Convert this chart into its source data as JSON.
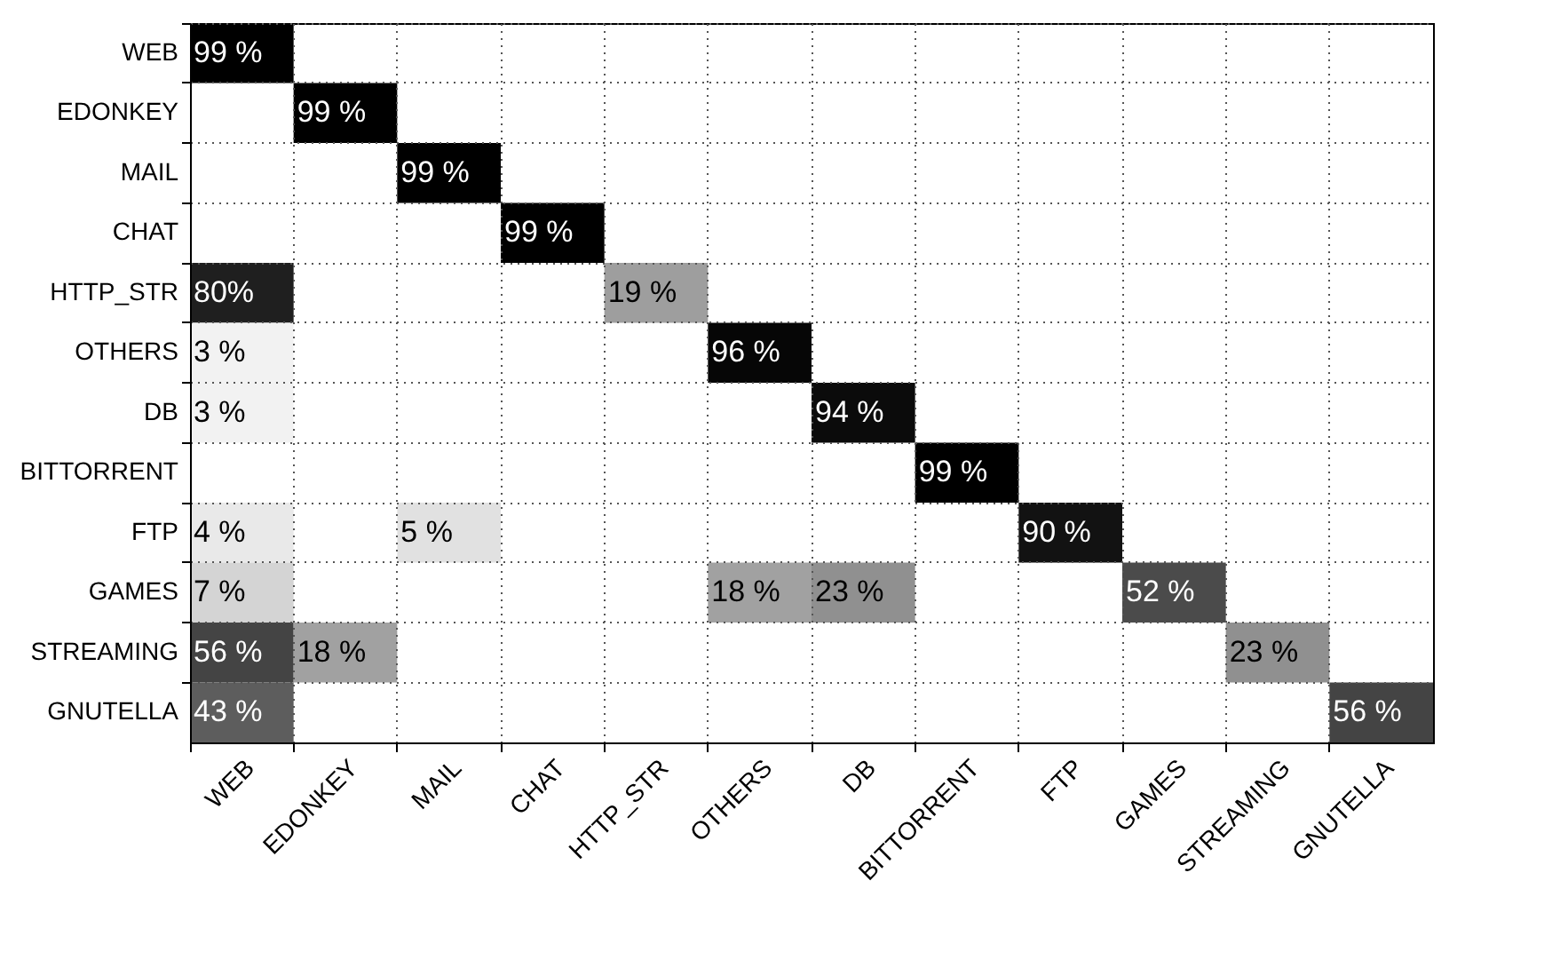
{
  "chart_data": {
    "type": "heatmap",
    "categories": [
      "WEB",
      "EDONKEY",
      "MAIL",
      "CHAT",
      "HTTP_STR",
      "OTHERS",
      "DB",
      "BITTORRENT",
      "FTP",
      "GAMES",
      "STREAMING",
      "GNUTELLA"
    ],
    "y_categories": [
      "WEB",
      "EDONKEY",
      "MAIL",
      "CHAT",
      "HTTP_STR",
      "OTHERS",
      "DB",
      "BITTORRENT",
      "FTP",
      "GAMES",
      "STREAMING",
      "GNUTELLA"
    ],
    "cells": [
      [
        99,
        null,
        null,
        null,
        null,
        null,
        null,
        null,
        null,
        null,
        null,
        null
      ],
      [
        null,
        99,
        null,
        null,
        null,
        null,
        null,
        null,
        null,
        null,
        null,
        null
      ],
      [
        null,
        null,
        99,
        null,
        null,
        null,
        null,
        null,
        null,
        null,
        null,
        null
      ],
      [
        null,
        null,
        null,
        99,
        null,
        null,
        null,
        null,
        null,
        null,
        null,
        null
      ],
      [
        80,
        null,
        null,
        null,
        19,
        null,
        null,
        null,
        null,
        null,
        null,
        null
      ],
      [
        3,
        null,
        null,
        null,
        null,
        96,
        null,
        null,
        null,
        null,
        null,
        null
      ],
      [
        3,
        null,
        null,
        null,
        null,
        null,
        94,
        null,
        null,
        null,
        null,
        null
      ],
      [
        null,
        null,
        null,
        null,
        null,
        null,
        null,
        99,
        null,
        null,
        null,
        null
      ],
      [
        4,
        null,
        5,
        null,
        null,
        null,
        null,
        null,
        90,
        null,
        null,
        null
      ],
      [
        7,
        null,
        null,
        null,
        null,
        18,
        23,
        null,
        null,
        52,
        null,
        null
      ],
      [
        56,
        18,
        null,
        null,
        null,
        null,
        null,
        null,
        null,
        null,
        23,
        null
      ],
      [
        43,
        null,
        null,
        null,
        null,
        null,
        null,
        null,
        null,
        null,
        null,
        56
      ]
    ],
    "cell_labels": [
      [
        "99 %",
        null,
        null,
        null,
        null,
        null,
        null,
        null,
        null,
        null,
        null,
        null
      ],
      [
        null,
        "99 %",
        null,
        null,
        null,
        null,
        null,
        null,
        null,
        null,
        null,
        null
      ],
      [
        null,
        null,
        "99 %",
        null,
        null,
        null,
        null,
        null,
        null,
        null,
        null,
        null
      ],
      [
        null,
        null,
        null,
        "99 %",
        null,
        null,
        null,
        null,
        null,
        null,
        null,
        null
      ],
      [
        "80%",
        null,
        null,
        null,
        "19 %",
        null,
        null,
        null,
        null,
        null,
        null,
        null
      ],
      [
        "3 %",
        null,
        null,
        null,
        null,
        "96 %",
        null,
        null,
        null,
        null,
        null,
        null
      ],
      [
        "3 %",
        null,
        null,
        null,
        null,
        null,
        "94 %",
        null,
        null,
        null,
        null,
        null
      ],
      [
        null,
        null,
        null,
        null,
        null,
        null,
        null,
        "99 %",
        null,
        null,
        null,
        null
      ],
      [
        "4 %",
        null,
        "5 %",
        null,
        null,
        null,
        null,
        null,
        "90 %",
        null,
        null,
        null
      ],
      [
        "7 %",
        null,
        null,
        null,
        null,
        "18 %",
        "23 %",
        null,
        null,
        "52 %",
        null,
        null
      ],
      [
        "56 %",
        "18 %",
        null,
        null,
        null,
        null,
        null,
        null,
        null,
        null,
        "23 %",
        null
      ],
      [
        "43 %",
        null,
        null,
        null,
        null,
        null,
        null,
        null,
        null,
        null,
        null,
        "56 %"
      ]
    ],
    "grid": true
  }
}
